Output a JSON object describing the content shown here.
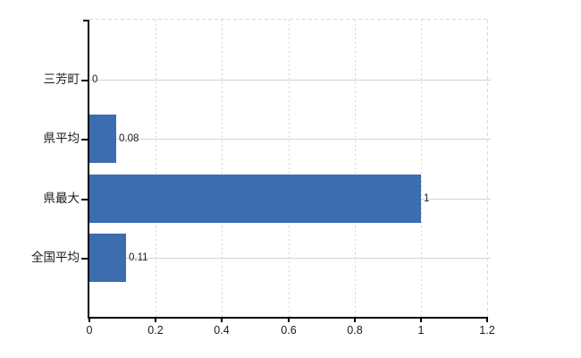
{
  "page": {
    "background_color": "#ffffff"
  },
  "chart_data": {
    "type": "bar",
    "orientation": "horizontal",
    "title": "",
    "xlabel": "",
    "ylabel": "",
    "categories": [
      "三芳町",
      "県平均",
      "県最大",
      "全国平均"
    ],
    "values": [
      0,
      0.08,
      1,
      0.11
    ],
    "value_labels": [
      "0",
      "0.08",
      "1",
      "0.11"
    ],
    "x_ticks": [
      0,
      0.2,
      0.4,
      0.6,
      0.8,
      1,
      1.2
    ],
    "x_tick_labels": [
      "0",
      "0.2",
      "0.4",
      "0.6",
      "0.8",
      "1",
      "1.2"
    ],
    "xlim": [
      0,
      1.2
    ],
    "grid": true,
    "legend_position": "none",
    "bar_color": "#3c6db0",
    "axis_color": "#000000",
    "vertical_gridline_color": "#d7d3d7",
    "horizontal_gridline_color": "#cdd6cd",
    "plot_border_dashed_color": "#dadada",
    "text_color": "#1a1a1a"
  }
}
